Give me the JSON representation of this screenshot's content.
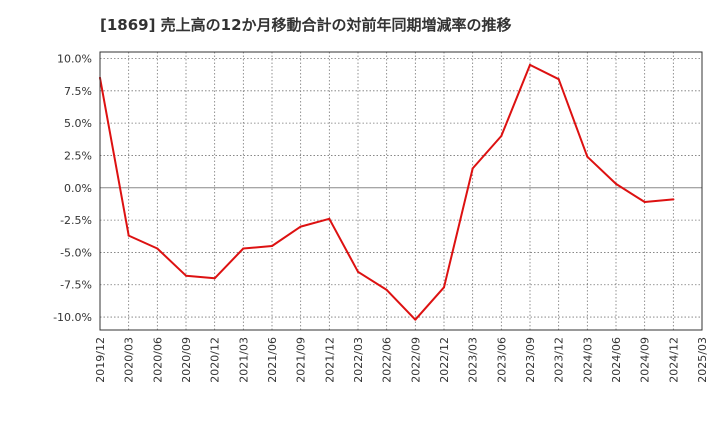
{
  "chart_data": {
    "type": "line",
    "title": "[1869]  売上高の12か月移動合計の対前年同期増減率の推移",
    "xlabel": "",
    "ylabel": "",
    "ylim": [
      -11.0,
      10.5
    ],
    "grid": true,
    "y_ticks": [
      10.0,
      7.5,
      5.0,
      2.5,
      0.0,
      -2.5,
      -5.0,
      -7.5,
      -10.0
    ],
    "y_tick_labels": [
      "10.0%",
      "7.5%",
      "5.0%",
      "2.5%",
      "0.0%",
      "-2.5%",
      "-5.0%",
      "-7.5%",
      "-10.0%"
    ],
    "categories": [
      "2019/12",
      "2020/03",
      "2020/06",
      "2020/09",
      "2020/12",
      "2021/03",
      "2021/06",
      "2021/09",
      "2021/12",
      "2022/03",
      "2022/06",
      "2022/09",
      "2022/12",
      "2023/03",
      "2023/06",
      "2023/09",
      "2023/12",
      "2024/03",
      "2024/06",
      "2024/09",
      "2024/12",
      "2025/03"
    ],
    "series": [
      {
        "name": "対前年同期増減率",
        "color": "#dd1111",
        "values": [
          8.5,
          -3.7,
          -4.7,
          -6.8,
          -7.0,
          -4.7,
          -4.5,
          -3.0,
          -2.4,
          -6.5,
          -7.9,
          -10.2,
          -7.7,
          1.5,
          4.0,
          9.5,
          8.4,
          2.4,
          0.3,
          -1.1,
          -0.9,
          null
        ]
      }
    ]
  }
}
